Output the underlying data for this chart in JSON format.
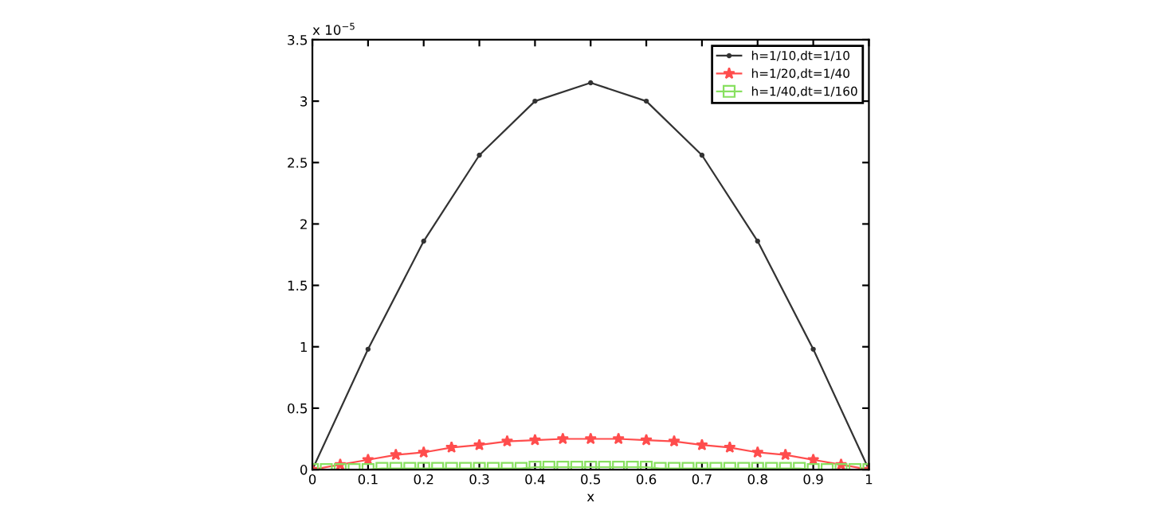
{
  "chart_data": {
    "type": "line",
    "xlabel": "x",
    "annotations": [
      "x 10$^{−5}$"
    ],
    "xlim": [
      0,
      1
    ],
    "xticks": [
      0,
      0.1,
      0.2,
      0.3,
      0.4,
      0.5,
      0.6,
      0.7,
      0.8,
      0.9,
      1
    ],
    "ylim": [
      0,
      3.5
    ],
    "yticks": [
      0,
      0.5,
      1,
      1.5,
      2,
      2.5,
      3,
      3.5
    ],
    "grid": false,
    "legend": "top right",
    "line_style": "solid",
    "series": [
      {
        "name": "h=1/10,dt=1/10",
        "color": "#333333",
        "marker": "point",
        "x": [
          0,
          0.1,
          0.2,
          0.3,
          0.4,
          0.5,
          0.6,
          0.7,
          0.8,
          0.9,
          1
        ],
        "values": [
          0,
          0.98,
          1.86,
          2.56,
          3.0,
          3.15,
          3.0,
          2.56,
          1.86,
          0.98,
          0
        ]
      },
      {
        "name": "h=1/20,dt=1/40",
        "color": "#ff4d4d",
        "marker": "star",
        "x": [
          0,
          0.05,
          0.1,
          0.15,
          0.2,
          0.25,
          0.3,
          0.35,
          0.4,
          0.45,
          0.5,
          0.55,
          0.6,
          0.65,
          0.7,
          0.75,
          0.8,
          0.85,
          0.9,
          0.95,
          1
        ],
        "values": [
          0,
          0.04,
          0.08,
          0.12,
          0.14,
          0.18,
          0.2,
          0.23,
          0.24,
          0.25,
          0.25,
          0.25,
          0.24,
          0.23,
          0.2,
          0.18,
          0.14,
          0.12,
          0.08,
          0.04,
          0
        ]
      },
      {
        "name": "h=1/40,dt=1/160",
        "color": "#88e060",
        "marker": "square",
        "x": [
          0,
          0.025,
          0.05,
          0.075,
          0.1,
          0.125,
          0.15,
          0.175,
          0.2,
          0.225,
          0.25,
          0.275,
          0.3,
          0.325,
          0.35,
          0.375,
          0.4,
          0.425,
          0.45,
          0.475,
          0.5,
          0.525,
          0.55,
          0.575,
          0.6,
          0.625,
          0.65,
          0.675,
          0.7,
          0.725,
          0.75,
          0.775,
          0.8,
          0.825,
          0.85,
          0.875,
          0.9,
          0.925,
          0.95,
          0.975,
          1
        ],
        "values": [
          0,
          0,
          0,
          0,
          0,
          0.01,
          0.01,
          0.01,
          0.01,
          0.01,
          0.01,
          0.01,
          0.01,
          0.01,
          0.01,
          0.01,
          0.02,
          0.02,
          0.02,
          0.02,
          0.02,
          0.02,
          0.02,
          0.02,
          0.02,
          0.01,
          0.01,
          0.01,
          0.01,
          0.01,
          0.01,
          0.01,
          0.01,
          0.01,
          0.01,
          0.01,
          0,
          0,
          0,
          0,
          0
        ]
      }
    ]
  }
}
